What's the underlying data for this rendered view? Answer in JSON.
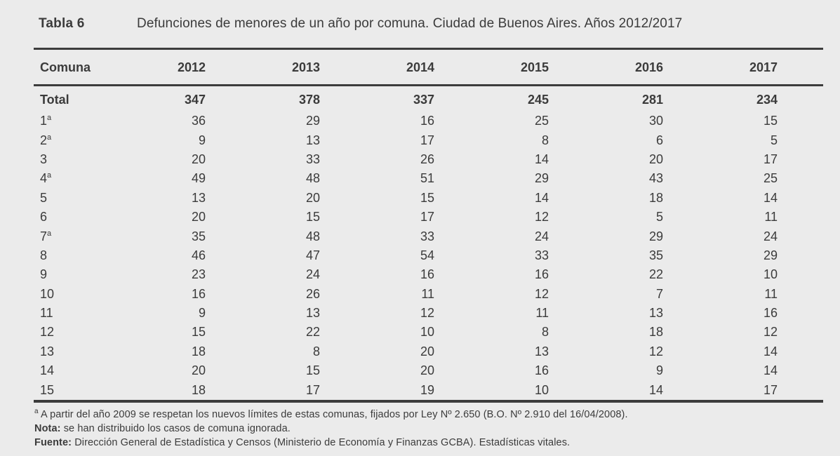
{
  "page": {
    "background_color": "#ebebeb",
    "text_color": "#3b3b3b",
    "rule_color": "#3c3c3c"
  },
  "table": {
    "label": "Tabla 6",
    "title": "Defunciones de menores de un año por comuna. Ciudad de Buenos Aires. Años 2012/2017",
    "columns": [
      "Comuna",
      "2012",
      "2013",
      "2014",
      "2015",
      "2016",
      "2017"
    ],
    "rows": [
      {
        "comuna": "Total",
        "sup": "",
        "bold": true,
        "values": [
          347,
          378,
          337,
          245,
          281,
          234
        ]
      },
      {
        "comuna": "1",
        "sup": "a",
        "bold": false,
        "values": [
          36,
          29,
          16,
          25,
          30,
          15
        ]
      },
      {
        "comuna": "2",
        "sup": "a",
        "bold": false,
        "values": [
          9,
          13,
          17,
          8,
          6,
          5
        ]
      },
      {
        "comuna": "3",
        "sup": "",
        "bold": false,
        "values": [
          20,
          33,
          26,
          14,
          20,
          17
        ]
      },
      {
        "comuna": "4",
        "sup": "a",
        "bold": false,
        "values": [
          49,
          48,
          51,
          29,
          43,
          25
        ]
      },
      {
        "comuna": "5",
        "sup": "",
        "bold": false,
        "values": [
          13,
          20,
          15,
          14,
          18,
          14
        ]
      },
      {
        "comuna": "6",
        "sup": "",
        "bold": false,
        "values": [
          20,
          15,
          17,
          12,
          5,
          11
        ]
      },
      {
        "comuna": "7",
        "sup": "a",
        "bold": false,
        "values": [
          35,
          48,
          33,
          24,
          29,
          24
        ]
      },
      {
        "comuna": "8",
        "sup": "",
        "bold": false,
        "values": [
          46,
          47,
          54,
          33,
          35,
          29
        ]
      },
      {
        "comuna": "9",
        "sup": "",
        "bold": false,
        "values": [
          23,
          24,
          16,
          16,
          22,
          10
        ]
      },
      {
        "comuna": "10",
        "sup": "",
        "bold": false,
        "values": [
          16,
          26,
          11,
          12,
          7,
          11
        ]
      },
      {
        "comuna": "11",
        "sup": "",
        "bold": false,
        "values": [
          9,
          13,
          12,
          11,
          13,
          16
        ]
      },
      {
        "comuna": "12",
        "sup": "",
        "bold": false,
        "values": [
          15,
          22,
          10,
          8,
          18,
          12
        ]
      },
      {
        "comuna": "13",
        "sup": "",
        "bold": false,
        "values": [
          18,
          8,
          20,
          13,
          12,
          14
        ]
      },
      {
        "comuna": "14",
        "sup": "",
        "bold": false,
        "values": [
          20,
          15,
          20,
          16,
          9,
          14
        ]
      },
      {
        "comuna": "15",
        "sup": "",
        "bold": false,
        "values": [
          18,
          17,
          19,
          10,
          14,
          17
        ]
      }
    ]
  },
  "footnotes": {
    "note_a_marker": "a",
    "note_a_text": " A partir del año 2009 se respetan los nuevos límites de estas comunas, fijados por Ley Nº 2.650 (B.O. Nº 2.910 del 16/04/2008).",
    "nota_label": "Nota:",
    "nota_text": " se han distribuido los casos de comuna ignorada.",
    "fuente_label": "Fuente:",
    "fuente_text": " Dirección General de Estadística y Censos (Ministerio de Economía y Finanzas GCBA). Estadísticas vitales."
  },
  "chart_data": {
    "type": "table",
    "title": "Defunciones de menores de un año por comuna. Ciudad de Buenos Aires. Años 2012/2017",
    "categories": [
      "Total",
      "1a",
      "2a",
      "3",
      "4a",
      "5",
      "6",
      "7a",
      "8",
      "9",
      "10",
      "11",
      "12",
      "13",
      "14",
      "15"
    ],
    "series": [
      {
        "name": "2012",
        "values": [
          347,
          36,
          9,
          20,
          49,
          13,
          20,
          35,
          46,
          23,
          16,
          9,
          15,
          18,
          20,
          18
        ]
      },
      {
        "name": "2013",
        "values": [
          378,
          29,
          13,
          33,
          48,
          20,
          15,
          48,
          47,
          24,
          26,
          13,
          22,
          8,
          15,
          17
        ]
      },
      {
        "name": "2014",
        "values": [
          337,
          16,
          17,
          26,
          51,
          15,
          17,
          33,
          54,
          16,
          11,
          12,
          10,
          20,
          20,
          19
        ]
      },
      {
        "name": "2015",
        "values": [
          245,
          25,
          8,
          14,
          29,
          14,
          12,
          24,
          33,
          16,
          12,
          11,
          8,
          13,
          16,
          10
        ]
      },
      {
        "name": "2016",
        "values": [
          281,
          30,
          6,
          20,
          43,
          18,
          5,
          29,
          35,
          22,
          7,
          13,
          18,
          12,
          9,
          14
        ]
      },
      {
        "name": "2017",
        "values": [
          234,
          15,
          5,
          17,
          25,
          14,
          11,
          24,
          29,
          10,
          11,
          16,
          12,
          14,
          14,
          17
        ]
      }
    ]
  }
}
